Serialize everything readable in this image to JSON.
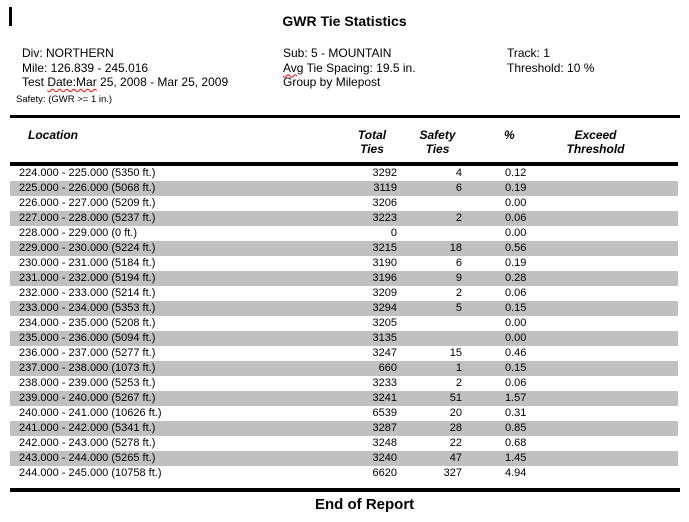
{
  "page": {
    "title": "GWR Tie Statistics",
    "end_of_report": "End of Report"
  },
  "info": {
    "division": "Div: NORTHERN",
    "mile_range": "Mile: 126.839 - 245.016",
    "test_date": {
      "prefix": "Test ",
      "misspelled": "Date:Mar",
      "suffix": " 25, 2008 - Mar 25, 2009"
    },
    "safety_criteria": "Safety: (GWR >= 1 in.)",
    "sub": "Sub: 5 - MOUNTAIN",
    "tie_spacing": {
      "misspelled": "Avg",
      "suffix": " Tie Spacing: 19.5 in."
    },
    "group_by": "Group by Milepost",
    "track": "Track: 1",
    "threshold": "Threshold: 10 %"
  },
  "colors": {
    "row_stripe": "#c0c0c0",
    "rule": "#000000",
    "spellcheck_underline": "#ff0000"
  },
  "table": {
    "headers": {
      "location": "Location",
      "total_line1": "Total",
      "total_line2": "Ties",
      "safety_line1": "Safety",
      "safety_line2": "Ties",
      "percent": "%",
      "exceed_line1": "Exceed",
      "exceed_line2": "Threshold"
    },
    "rows": [
      {
        "location": "224.000 - 225.000 (5350 ft.)",
        "total_ties": "3292",
        "safety_ties": "4",
        "percent": "0.12",
        "exceed": ""
      },
      {
        "location": "225.000 - 226.000 (5068 ft.)",
        "total_ties": "3119",
        "safety_ties": "6",
        "percent": "0.19",
        "exceed": ""
      },
      {
        "location": "226.000 - 227.000 (5209 ft.)",
        "total_ties": "3206",
        "safety_ties": "",
        "percent": "0.00",
        "exceed": ""
      },
      {
        "location": "227.000 - 228.000 (5237 ft.)",
        "total_ties": "3223",
        "safety_ties": "2",
        "percent": "0.06",
        "exceed": ""
      },
      {
        "location": "228.000 - 229.000 (0 ft.)",
        "total_ties": "0",
        "safety_ties": "",
        "percent": "0.00",
        "exceed": ""
      },
      {
        "location": "229.000 - 230.000 (5224 ft.)",
        "total_ties": "3215",
        "safety_ties": "18",
        "percent": "0.56",
        "exceed": ""
      },
      {
        "location": "230.000 - 231.000 (5184 ft.)",
        "total_ties": "3190",
        "safety_ties": "6",
        "percent": "0.19",
        "exceed": ""
      },
      {
        "location": "231.000 - 232.000 (5194 ft.)",
        "total_ties": "3196",
        "safety_ties": "9",
        "percent": "0.28",
        "exceed": ""
      },
      {
        "location": "232.000 - 233.000 (5214 ft.)",
        "total_ties": "3209",
        "safety_ties": "2",
        "percent": "0.06",
        "exceed": ""
      },
      {
        "location": "233.000 - 234.000 (5353 ft.)",
        "total_ties": "3294",
        "safety_ties": "5",
        "percent": "0.15",
        "exceed": ""
      },
      {
        "location": "234.000 - 235.000 (5208 ft.)",
        "total_ties": "3205",
        "safety_ties": "",
        "percent": "0.00",
        "exceed": ""
      },
      {
        "location": "235.000 - 236.000 (5094 ft.)",
        "total_ties": "3135",
        "safety_ties": "",
        "percent": "0.00",
        "exceed": ""
      },
      {
        "location": "236.000 - 237.000 (5277 ft.)",
        "total_ties": "3247",
        "safety_ties": "15",
        "percent": "0.46",
        "exceed": ""
      },
      {
        "location": "237.000 - 238.000 (1073 ft.)",
        "total_ties": "660",
        "safety_ties": "1",
        "percent": "0.15",
        "exceed": ""
      },
      {
        "location": "238.000 - 239.000 (5253 ft.)",
        "total_ties": "3233",
        "safety_ties": "2",
        "percent": "0.06",
        "exceed": ""
      },
      {
        "location": "239.000 - 240.000 (5267 ft.)",
        "total_ties": "3241",
        "safety_ties": "51",
        "percent": "1.57",
        "exceed": ""
      },
      {
        "location": "240.000 - 241.000 (10626 ft.)",
        "total_ties": "6539",
        "safety_ties": "20",
        "percent": "0.31",
        "exceed": ""
      },
      {
        "location": "241.000 - 242.000 (5341 ft.)",
        "total_ties": "3287",
        "safety_ties": "28",
        "percent": "0.85",
        "exceed": ""
      },
      {
        "location": "242.000 - 243.000 (5278 ft.)",
        "total_ties": "3248",
        "safety_ties": "22",
        "percent": "0.68",
        "exceed": ""
      },
      {
        "location": "243.000 - 244.000 (5265 ft.)",
        "total_ties": "3240",
        "safety_ties": "47",
        "percent": "1.45",
        "exceed": ""
      },
      {
        "location": "244.000 - 245.000 (10758 ft.)",
        "total_ties": "6620",
        "safety_ties": "327",
        "percent": "4.94",
        "exceed": ""
      }
    ]
  }
}
